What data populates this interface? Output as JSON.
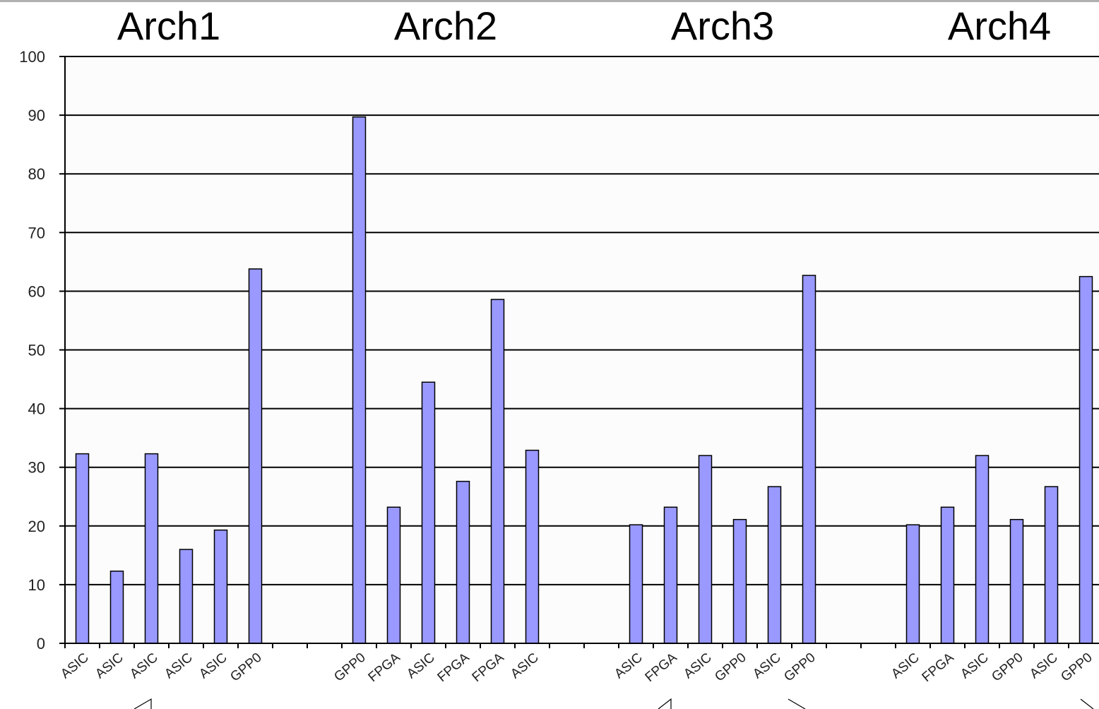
{
  "chart_data": {
    "type": "bar",
    "groups": [
      "Arch1",
      "Arch2",
      "Arch3",
      "Arch4"
    ],
    "categories": [
      "ASIC",
      "ASIC",
      "ASIC",
      "ASIC",
      "ASIC",
      "GPP0",
      null,
      null,
      "GPP0",
      "FPGA",
      "ASIC",
      "FPGA",
      "FPGA",
      "ASIC",
      null,
      null,
      "ASIC",
      "FPGA",
      "ASIC",
      "GPP0",
      "ASIC",
      "GPP0",
      null,
      null,
      "ASIC",
      "FPGA",
      "ASIC",
      "GPP0",
      "ASIC",
      "GPP0"
    ],
    "values": [
      32.3,
      12.3,
      32.3,
      16,
      19.3,
      63.8,
      null,
      null,
      89.7,
      23.2,
      44.5,
      27.6,
      58.6,
      32.9,
      null,
      null,
      20.2,
      23.2,
      32,
      21.1,
      26.7,
      62.7,
      null,
      null,
      20.2,
      23.2,
      32,
      21.1,
      26.7,
      62.5
    ],
    "color": "#9999ff",
    "ylim": [
      0,
      100
    ],
    "yticks": [
      0,
      10,
      20,
      30,
      40,
      50,
      60,
      70,
      80,
      90,
      100
    ],
    "grid": true
  }
}
